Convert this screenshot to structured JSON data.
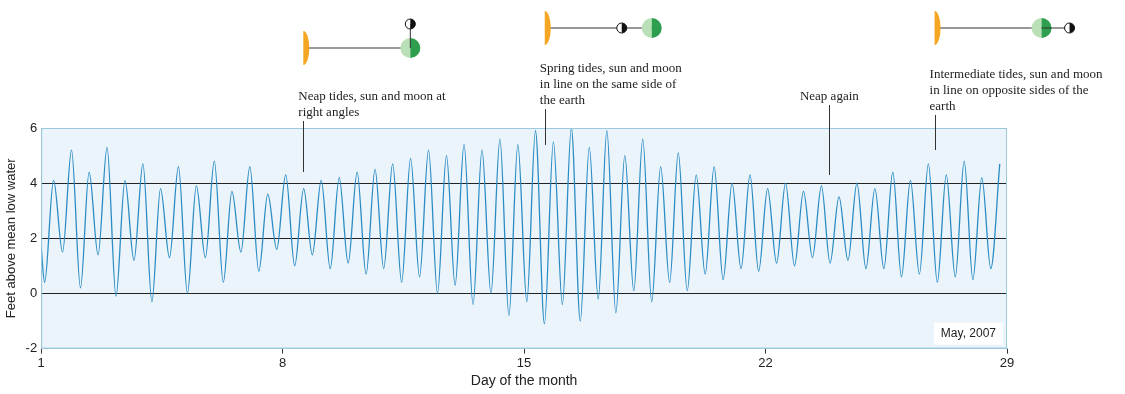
{
  "chart_data": {
    "type": "line",
    "x_label": "Day of the month",
    "y_label": "Feet above mean low water",
    "caption": "May, 2007",
    "color": "#2b8cc4",
    "xlim": [
      1,
      29
    ],
    "xticks": [
      1,
      8,
      15,
      22,
      29
    ],
    "ylim": [
      -2,
      6
    ],
    "yticks": [
      -2,
      0,
      2,
      4,
      6
    ],
    "grid": true,
    "annotations": [
      {
        "text": "Neap tides, sun and moon at right angles",
        "x": 8.6
      },
      {
        "text": "Spring tides, sun and moon in line on the same side of the earth",
        "x": 15.6
      },
      {
        "text": "Neap again",
        "x": 23.85
      },
      {
        "text": "Intermediate tides, sun and moon in line on opposite sides of the earth",
        "x": 26.9
      }
    ],
    "x": [
      1.0,
      1.1,
      1.36,
      1.62,
      1.88,
      2.14,
      2.39,
      2.65,
      2.91,
      3.17,
      3.43,
      3.69,
      3.95,
      4.21,
      4.46,
      4.72,
      4.98,
      5.24,
      5.5,
      5.76,
      6.02,
      6.28,
      6.53,
      6.79,
      7.05,
      7.31,
      7.57,
      7.83,
      8.09,
      8.35,
      8.61,
      8.86,
      9.12,
      9.38,
      9.64,
      9.9,
      10.16,
      10.42,
      10.68,
      10.93,
      11.19,
      11.45,
      11.71,
      11.97,
      12.23,
      12.49,
      12.75,
      13.0,
      13.26,
      13.52,
      13.78,
      14.04,
      14.3,
      14.56,
      14.82,
      15.08,
      15.33,
      15.59,
      15.85,
      16.11,
      16.37,
      16.63,
      16.89,
      17.15,
      17.4,
      17.66,
      17.92,
      18.18,
      18.44,
      18.7,
      18.96,
      19.22,
      19.47,
      19.73,
      19.99,
      20.25,
      20.51,
      20.77,
      21.03,
      21.29,
      21.55,
      21.8,
      22.06,
      22.32,
      22.58,
      22.84,
      23.1,
      23.36,
      23.62,
      23.87,
      24.13,
      24.39,
      24.65,
      24.91,
      25.17,
      25.43,
      25.69,
      25.94,
      26.2,
      26.46,
      26.72,
      26.98,
      27.24,
      27.5,
      27.76,
      28.01,
      28.27,
      28.53,
      28.79
    ],
    "values": [
      1.7,
      0.4,
      4.1,
      1.5,
      5.2,
      0.2,
      4.4,
      1.4,
      5.3,
      -0.1,
      4.1,
      1.2,
      4.7,
      -0.3,
      3.8,
      1.3,
      4.6,
      0.0,
      3.9,
      1.3,
      4.8,
      0.4,
      3.7,
      1.5,
      4.6,
      0.8,
      3.6,
      1.6,
      4.3,
      1.0,
      3.8,
      1.4,
      4.1,
      0.9,
      4.2,
      1.1,
      4.4,
      0.7,
      4.5,
      0.9,
      4.7,
      0.4,
      4.9,
      0.6,
      5.2,
      0.0,
      5.0,
      0.3,
      5.4,
      -0.4,
      5.2,
      0.0,
      5.6,
      -0.8,
      5.4,
      -0.3,
      5.9,
      -1.1,
      5.5,
      -0.4,
      6.0,
      -1.0,
      5.3,
      -0.2,
      5.9,
      -0.7,
      5.0,
      0.1,
      5.6,
      -0.3,
      4.6,
      0.4,
      5.1,
      0.1,
      4.3,
      0.7,
      4.6,
      0.5,
      4.0,
      0.9,
      4.3,
      0.8,
      3.8,
      1.1,
      4.0,
      1.0,
      3.7,
      1.3,
      3.9,
      1.1,
      3.5,
      1.2,
      4.0,
      0.9,
      3.8,
      0.9,
      4.4,
      0.6,
      4.1,
      0.7,
      4.7,
      0.4,
      4.3,
      0.6,
      4.8,
      0.5,
      4.2,
      0.9,
      4.7
    ]
  }
}
